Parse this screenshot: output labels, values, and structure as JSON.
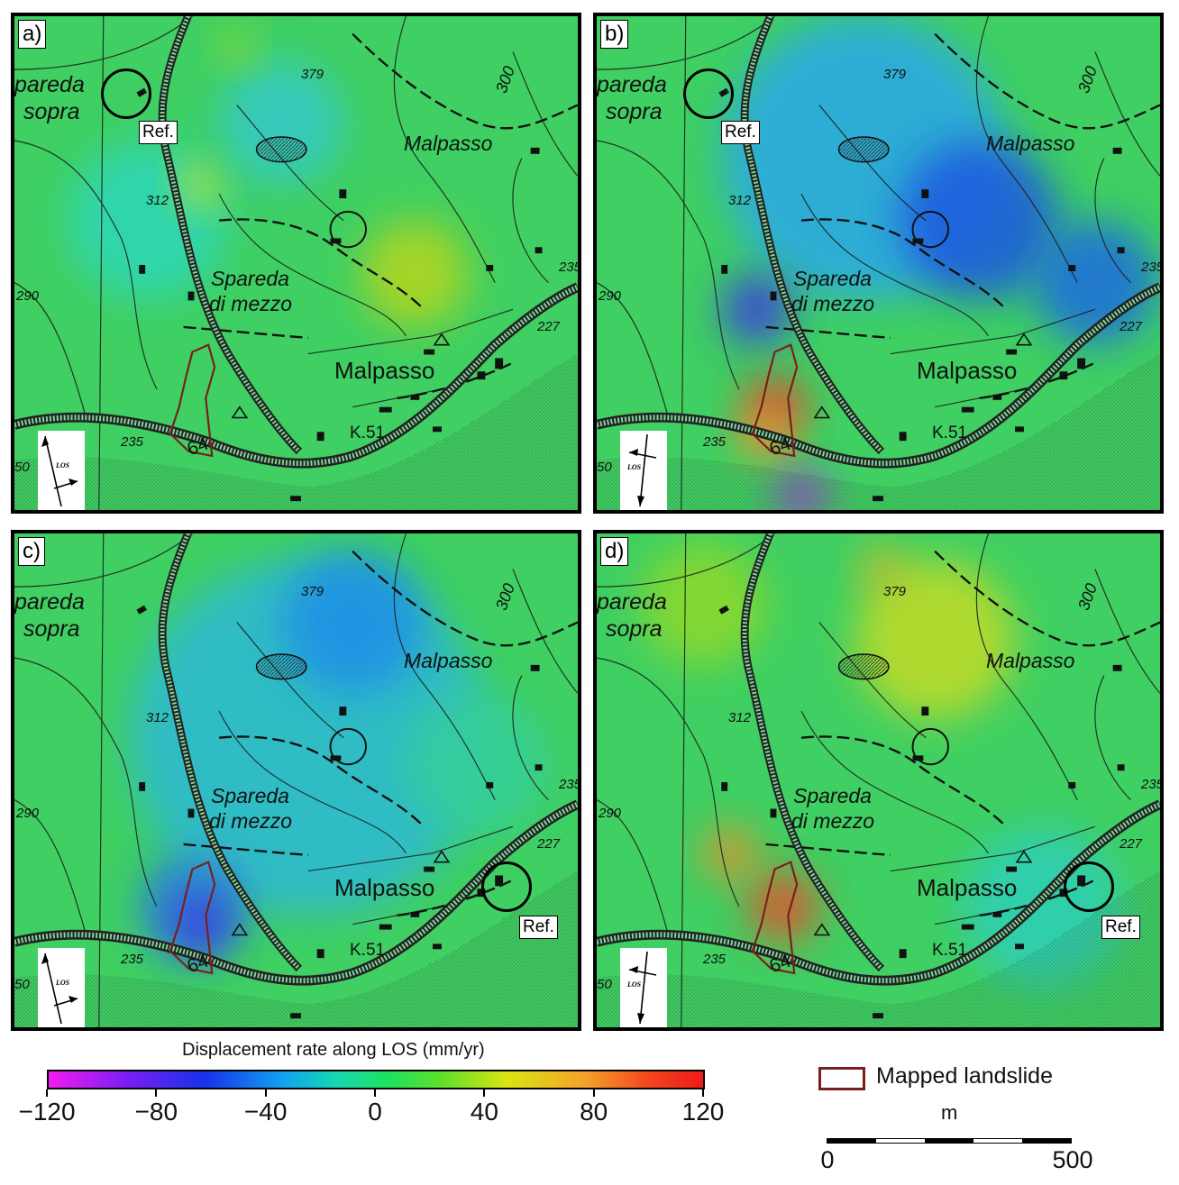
{
  "panels": [
    {
      "id": "a",
      "label": "a)",
      "ref_label": "Ref.",
      "ref_position": "top-left",
      "scheme": "green",
      "los_direction": "ascending"
    },
    {
      "id": "b",
      "label": "b)",
      "ref_label": "Ref.",
      "ref_position": "top-left",
      "scheme": "blue",
      "los_direction": "descending"
    },
    {
      "id": "c",
      "label": "c)",
      "ref_label": "Ref.",
      "ref_position": "bottom-right",
      "scheme": "cyan",
      "los_direction": "ascending"
    },
    {
      "id": "d",
      "label": "d)",
      "ref_label": "Ref.",
      "ref_position": "bottom-right",
      "scheme": "warm",
      "los_direction": "descending"
    }
  ],
  "map_labels": {
    "spareda_top_1": "pareda",
    "spareda_top_2": "sopra",
    "malpasso_ne": "Malpasso",
    "spareda_mid_1": "Spareda",
    "spareda_mid_2": "di mezzo",
    "malpasso_main": "Malpasso",
    "k51": "K.51",
    "el_379": "379",
    "el_300": "300",
    "el_312": "312",
    "el_290": "290",
    "el_235_right": "235",
    "el_227": "227",
    "el_235_bottom": "235",
    "el_64": "64",
    "el_50": "50",
    "los": "LOS"
  },
  "colors": {
    "landslide_outline": "#7a1e1e",
    "background_green": "#3fcf62"
  },
  "legend": {
    "title": "Displacement rate along LOS (mm/yr)",
    "ticks": [
      "−120",
      "−80",
      "−40",
      "0",
      "40",
      "80",
      "120"
    ],
    "min": -120,
    "max": 120,
    "landslide_label": "Mapped landslide",
    "scale_unit": "m",
    "scale_min": "0",
    "scale_max": "500"
  }
}
